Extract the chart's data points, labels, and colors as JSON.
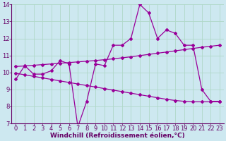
{
  "line1_x": [
    0,
    1,
    2,
    3,
    4,
    5,
    6,
    7,
    8,
    9,
    10,
    11,
    12,
    13,
    14,
    15,
    16,
    17,
    18,
    19,
    20,
    21,
    22,
    23
  ],
  "line1_y": [
    9.6,
    10.4,
    9.9,
    9.9,
    10.1,
    10.7,
    10.5,
    6.8,
    8.3,
    10.5,
    10.4,
    11.6,
    11.6,
    12.0,
    14.0,
    13.5,
    12.0,
    12.5,
    12.3,
    11.6,
    11.6,
    9.0,
    8.3,
    8.3
  ],
  "line2_x": [
    0,
    1,
    2,
    3,
    4,
    5,
    6,
    7,
    8,
    9,
    10,
    11,
    12,
    13,
    14,
    15,
    16,
    17,
    18,
    19,
    20,
    21,
    22,
    23
  ],
  "line2_y": [
    10.35,
    10.38,
    10.42,
    10.46,
    10.5,
    10.54,
    10.58,
    10.62,
    10.66,
    10.7,
    10.75,
    10.8,
    10.86,
    10.92,
    10.99,
    11.06,
    11.13,
    11.2,
    11.27,
    11.34,
    11.41,
    11.48,
    11.54,
    11.6
  ],
  "line3_x": [
    0,
    1,
    2,
    3,
    4,
    5,
    6,
    7,
    8,
    9,
    10,
    11,
    12,
    13,
    14,
    15,
    16,
    17,
    18,
    19,
    20,
    21,
    22,
    23
  ],
  "line3_y": [
    9.95,
    9.86,
    9.77,
    9.68,
    9.59,
    9.5,
    9.41,
    9.32,
    9.23,
    9.14,
    9.05,
    8.96,
    8.87,
    8.78,
    8.69,
    8.6,
    8.51,
    8.42,
    8.35,
    8.3,
    8.27,
    8.27,
    8.27,
    8.27
  ],
  "line_color": "#990099",
  "bg_color": "#cceeff",
  "grid_color": "#aaddcc",
  "xlabel": "Windchill (Refroidissement éolien,°C)",
  "xlim": [
    -0.5,
    23.5
  ],
  "ylim": [
    7,
    14
  ],
  "xticks": [
    0,
    1,
    2,
    3,
    4,
    5,
    6,
    7,
    8,
    9,
    10,
    11,
    12,
    13,
    14,
    15,
    16,
    17,
    18,
    19,
    20,
    21,
    22,
    23
  ],
  "yticks": [
    7,
    8,
    9,
    10,
    11,
    12,
    13,
    14
  ],
  "xlabel_fontsize": 6.5,
  "tick_fontsize": 6,
  "marker_size": 2.0,
  "line_width": 0.9
}
